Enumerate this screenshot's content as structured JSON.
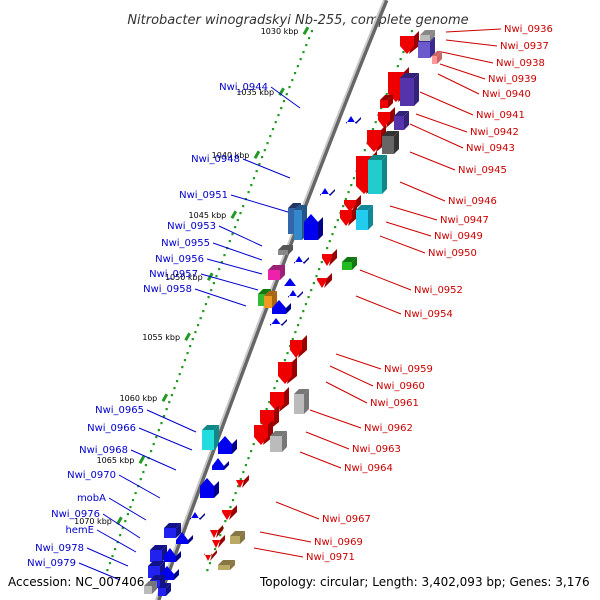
{
  "title": "Nitrobacter winogradskyi Nb-255, complete genome",
  "footer": {
    "accession": "Accession: NC_007406",
    "topology": "Topology: circular; Length: 3,402,093 bp; Genes: 3,176"
  },
  "colors": {
    "forward_gene": "#ee0000",
    "reverse_gene": "#0000ee",
    "backbone": "#999999",
    "tick": "#229922",
    "label_blue": "#0000cc",
    "label_red": "#cc0000"
  },
  "scale": {
    "unit": "kbp",
    "ticks": [
      "1030 kbp",
      "1035 kbp",
      "1040 kbp",
      "1045 kbp",
      "1050 kbp",
      "1055 kbp",
      "1060 kbp",
      "1065 kbp",
      "1070 kbp"
    ]
  },
  "genes": {
    "reverse_strand": [
      "Nwi_0944",
      "Nwi_0948",
      "Nwi_0951",
      "Nwi_0953",
      "Nwi_0955",
      "Nwi_0956",
      "Nwi_0957",
      "Nwi_0958",
      "Nwi_0965",
      "Nwi_0966",
      "Nwi_0968",
      "Nwi_0970",
      "mobA",
      "Nwi_0976",
      "hemE",
      "Nwi_0978",
      "Nwi_0979"
    ],
    "forward_strand": [
      "Nwi_0936",
      "Nwi_0937",
      "Nwi_0938",
      "Nwi_0939",
      "Nwi_0940",
      "Nwi_0941",
      "Nwi_0942",
      "Nwi_0943",
      "Nwi_0945",
      "Nwi_0946",
      "Nwi_0947",
      "Nwi_0949",
      "Nwi_0950",
      "Nwi_0952",
      "Nwi_0954",
      "Nwi_0959",
      "Nwi_0960",
      "Nwi_0961",
      "Nwi_0962",
      "Nwi_0963",
      "Nwi_0964",
      "Nwi_0967",
      "Nwi_0969",
      "Nwi_0971"
    ]
  }
}
